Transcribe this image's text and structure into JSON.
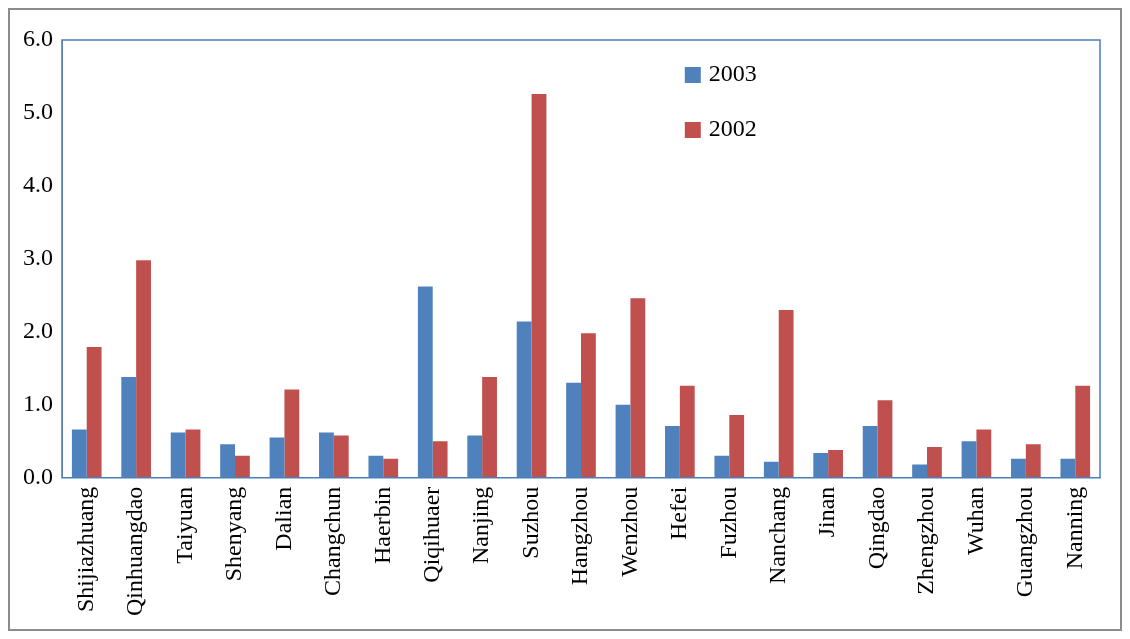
{
  "chart_data": {
    "type": "bar",
    "categories": [
      "Shijiazhuang",
      "Qinhuangdao",
      "Taiyuan",
      "Shenyang",
      "Dalian",
      "Changchun",
      "Haerbin",
      "Qiqihuaer",
      "Nanjing",
      "Suzhou",
      "Hangzhou",
      "Wenzhou",
      "Hefei",
      "Fuzhou",
      "Nanchang",
      "Jinan",
      "Qingdao",
      "Zhengzhou",
      "Wuhan",
      "Guangzhou",
      "Nanning"
    ],
    "series": [
      {
        "name": "2003",
        "color": "#4f81bd",
        "values": [
          0.66,
          1.38,
          0.62,
          0.46,
          0.55,
          0.62,
          0.3,
          2.62,
          0.58,
          2.14,
          1.3,
          1.0,
          0.71,
          0.3,
          0.22,
          0.34,
          0.71,
          0.18,
          0.5,
          0.26,
          0.26
        ]
      },
      {
        "name": "2002",
        "color": "#c0504d",
        "values": [
          1.79,
          2.98,
          0.66,
          0.3,
          1.21,
          0.58,
          0.26,
          0.5,
          1.38,
          5.26,
          1.98,
          2.46,
          1.26,
          0.86,
          2.3,
          0.38,
          1.06,
          0.42,
          0.66,
          0.46,
          1.26
        ]
      }
    ],
    "ylim": [
      0,
      6
    ],
    "yticks": [
      {
        "value": 0,
        "label": "0.0"
      },
      {
        "value": 1,
        "label": "1.0"
      },
      {
        "value": 2,
        "label": "2.0"
      },
      {
        "value": 3,
        "label": "3.0"
      },
      {
        "value": 4,
        "label": "4.0"
      },
      {
        "value": 5,
        "label": "5.0"
      },
      {
        "value": 6,
        "label": "6.0"
      }
    ],
    "grid": false,
    "legend": "top right"
  }
}
